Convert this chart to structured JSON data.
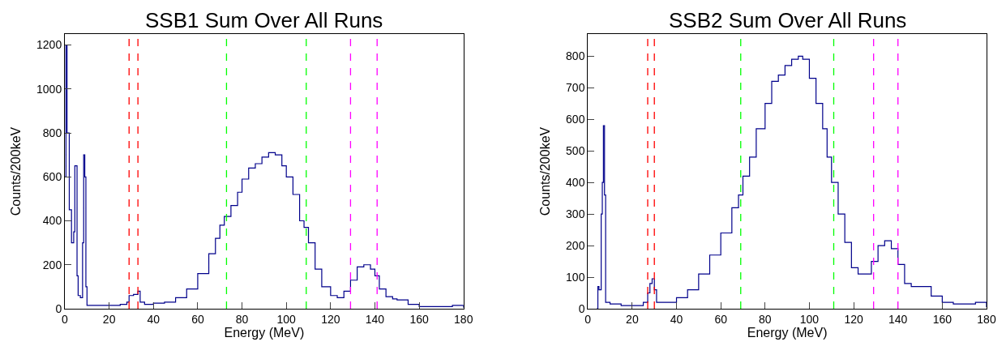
{
  "chart_data": [
    {
      "type": "step",
      "title": "SSB1 Sum Over All Runs",
      "xlabel": "Energy (MeV)",
      "ylabel": "Counts/200keV",
      "xlim": [
        0,
        180
      ],
      "xticks": [
        0,
        20,
        40,
        60,
        80,
        100,
        120,
        140,
        160,
        180
      ],
      "ylim": [
        0,
        1250
      ],
      "yticks": [
        0,
        200,
        400,
        600,
        800,
        1000,
        1200
      ],
      "series": [
        {
          "color": "#00008b",
          "x": [
            0,
            0.5,
            1,
            2,
            3,
            4,
            4.5,
            5.5,
            6,
            7,
            8,
            8.5,
            9,
            9.5,
            10,
            15,
            20,
            25,
            28,
            29,
            31,
            33,
            34,
            36,
            40,
            45,
            50,
            55,
            60,
            65,
            68,
            70,
            72,
            75,
            78,
            80,
            83,
            86,
            89,
            92,
            95,
            98,
            100,
            103,
            106,
            108,
            110,
            113,
            116,
            120,
            123,
            126,
            129,
            132,
            135,
            138,
            140,
            142,
            145,
            148,
            150,
            155,
            160,
            170,
            175,
            180
          ],
          "values": [
            600,
            1200,
            800,
            450,
            300,
            350,
            650,
            150,
            60,
            50,
            300,
            700,
            600,
            100,
            15,
            15,
            15,
            20,
            30,
            60,
            65,
            80,
            30,
            20,
            25,
            30,
            50,
            90,
            160,
            250,
            320,
            380,
            420,
            470,
            530,
            590,
            640,
            660,
            690,
            710,
            700,
            650,
            600,
            520,
            400,
            370,
            300,
            180,
            100,
            60,
            50,
            80,
            130,
            190,
            200,
            180,
            150,
            90,
            55,
            45,
            40,
            20,
            10,
            10,
            15,
            5
          ]
        }
      ],
      "ref_lines": [
        {
          "axis": "x",
          "value": 29,
          "color": "#ff0000",
          "line_style": "dashed"
        },
        {
          "axis": "x",
          "value": 33,
          "color": "#ff0000",
          "line_style": "dashed"
        },
        {
          "axis": "x",
          "value": 73,
          "color": "#00ff00",
          "line_style": "dashed"
        },
        {
          "axis": "x",
          "value": 109,
          "color": "#00ff00",
          "line_style": "dashed"
        },
        {
          "axis": "x",
          "value": 129,
          "color": "#ff00ff",
          "line_style": "dashed"
        },
        {
          "axis": "x",
          "value": 141,
          "color": "#ff00ff",
          "line_style": "dashed"
        }
      ]
    },
    {
      "type": "step",
      "title": "SSB2 Sum Over All Runs",
      "xlabel": "Energy (MeV)",
      "ylabel": "Counts/200keV",
      "xlim": [
        0,
        180
      ],
      "xticks": [
        0,
        20,
        40,
        60,
        80,
        100,
        120,
        140,
        160,
        180
      ],
      "ylim": [
        0,
        870
      ],
      "yticks": [
        0,
        100,
        200,
        300,
        400,
        500,
        600,
        700,
        800
      ],
      "series": [
        {
          "color": "#00008b",
          "x": [
            4,
            4.5,
            5,
            6,
            6.5,
            7,
            7.5,
            8,
            10,
            15,
            20,
            25,
            27,
            28,
            29,
            30,
            31,
            35,
            40,
            45,
            50,
            55,
            60,
            65,
            68,
            70,
            73,
            76,
            80,
            83,
            86,
            89,
            92,
            95,
            97,
            100,
            103,
            106,
            108,
            110,
            113,
            116,
            119,
            122,
            125,
            128,
            131,
            134,
            137,
            140,
            143,
            146,
            150,
            155,
            160,
            165,
            170,
            175,
            180
          ],
          "values": [
            0,
            70,
            60,
            300,
            400,
            580,
            360,
            20,
            15,
            10,
            10,
            20,
            50,
            80,
            95,
            60,
            20,
            20,
            35,
            60,
            110,
            170,
            240,
            320,
            360,
            420,
            480,
            570,
            650,
            720,
            740,
            770,
            790,
            800,
            790,
            730,
            650,
            570,
            480,
            400,
            300,
            210,
            130,
            110,
            110,
            150,
            200,
            215,
            190,
            140,
            80,
            70,
            70,
            40,
            20,
            15,
            15,
            20,
            5
          ]
        }
      ],
      "ref_lines": [
        {
          "axis": "x",
          "value": 27,
          "color": "#ff0000",
          "line_style": "dashed"
        },
        {
          "axis": "x",
          "value": 30,
          "color": "#ff0000",
          "line_style": "dashed"
        },
        {
          "axis": "x",
          "value": 69,
          "color": "#00ff00",
          "line_style": "dashed"
        },
        {
          "axis": "x",
          "value": 111,
          "color": "#00ff00",
          "line_style": "dashed"
        },
        {
          "axis": "x",
          "value": 129,
          "color": "#ff00ff",
          "line_style": "dashed"
        },
        {
          "axis": "x",
          "value": 140,
          "color": "#ff00ff",
          "line_style": "dashed"
        }
      ]
    }
  ]
}
